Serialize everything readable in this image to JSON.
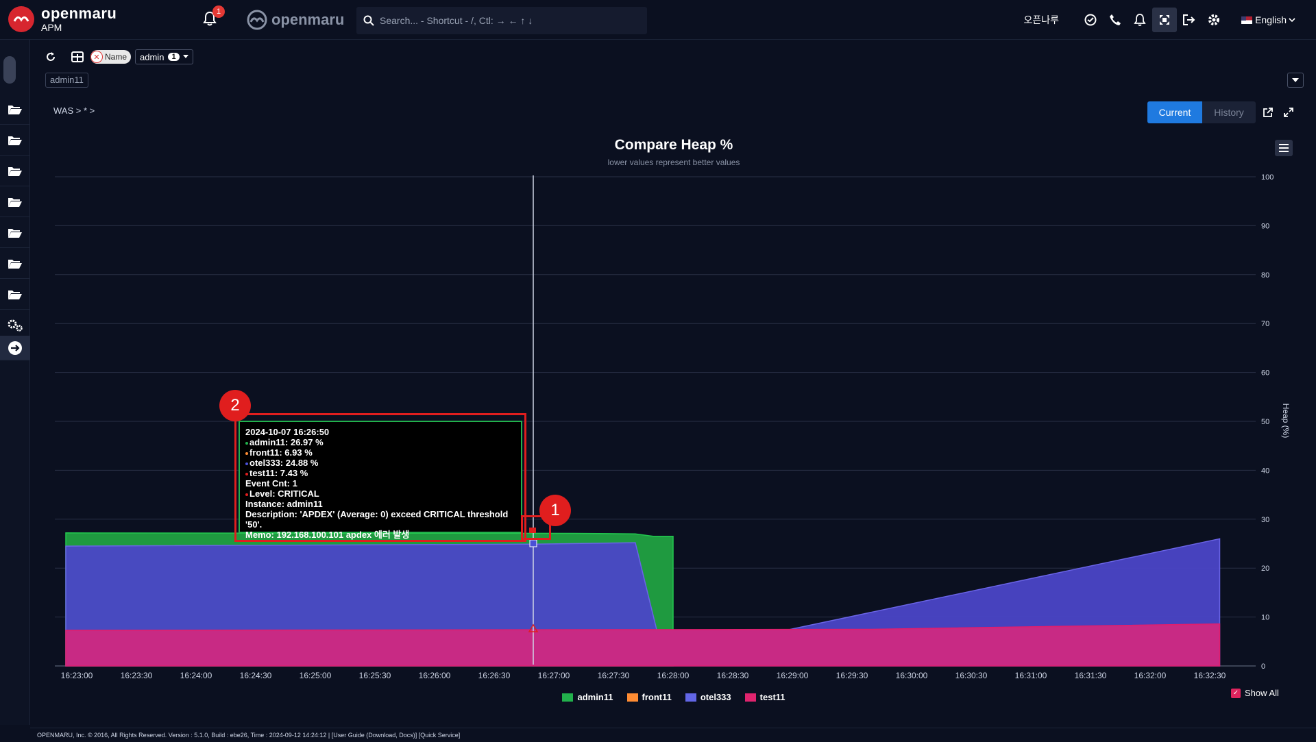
{
  "header": {
    "logo_name": "openmaru",
    "logo_sub": "APM",
    "notification_count": "1",
    "brand2": "openmaru",
    "search_placeholder": "Search... - Shortcut - /, Ctl: → ← ↑ ↓",
    "org_name": "오픈나루",
    "language": "English"
  },
  "toolbar": {
    "filter_chip": "Name",
    "selected_user": "admin",
    "selected_count": "1",
    "tag": "admin11"
  },
  "breadcrumb": "WAS > * >",
  "view_toggle": {
    "current": "Current",
    "history": "History"
  },
  "chart_data": {
    "type": "area",
    "title": "Compare Heap %",
    "subtitle": "lower values represent better values",
    "ylabel": "Heap (%)",
    "ylim": [
      0,
      100
    ],
    "yticks": [
      "0",
      "10",
      "20",
      "30",
      "40",
      "50",
      "60",
      "70",
      "80",
      "90",
      "100"
    ],
    "xticks": [
      "16:23:00",
      "16:23:30",
      "16:24:00",
      "16:24:30",
      "16:25:00",
      "16:25:30",
      "16:26:00",
      "16:26:30",
      "16:27:00",
      "16:27:30",
      "16:28:00",
      "16:28:30",
      "16:29:00",
      "16:29:30",
      "16:30:00",
      "16:30:30",
      "16:31:00",
      "16:31:30",
      "16:32:00",
      "16:32:30"
    ],
    "x_seconds_note": "",
    "series": [
      {
        "name": "admin11",
        "color": "#22b14c",
        "points": [
          [
            -10,
            27.2
          ],
          [
            250,
            27.1
          ],
          [
            281,
            27.0
          ],
          [
            290,
            26.5
          ],
          [
            300,
            26.5
          ]
        ]
      },
      {
        "name": "front11",
        "color": "#ff8c33",
        "points": [
          [
            -10,
            7.0
          ],
          [
            575,
            7.0
          ]
        ]
      },
      {
        "name": "otel333",
        "color": "#4a50d6",
        "points": [
          [
            -10,
            24.5
          ],
          [
            230,
            24.9
          ],
          [
            281,
            25.2
          ],
          [
            295,
            2.0
          ],
          [
            575,
            26.0
          ]
        ]
      },
      {
        "name": "test11",
        "color": "#d1267a",
        "points": [
          [
            -10,
            7.3
          ],
          [
            230,
            7.4
          ],
          [
            400,
            7.5
          ],
          [
            575,
            8.6
          ]
        ]
      }
    ],
    "legend": [
      "admin11",
      "front11",
      "otel333",
      "test11"
    ],
    "show_all_label": "Show All"
  },
  "tooltip": {
    "timestamp": "2024-10-07 16:26:50",
    "lines": [
      {
        "label": "admin11: 26.97 %",
        "color": "#22b14c"
      },
      {
        "label": "front11: 6.93 %",
        "color": "#ff8c33"
      },
      {
        "label": "otel333: 24.88 %",
        "color": "#4a50d6"
      },
      {
        "label": "test11: 7.43 %",
        "color": "#e01e1e"
      }
    ],
    "event_cnt": "Event Cnt: 1",
    "level": "Level: CRITICAL",
    "level_color": "#e01e1e",
    "instance": "Instance: admin11",
    "description": "Description: 'APDEX' (Average: 0) exceed CRITICAL threshold '50'.",
    "memo": "Memo: 192.168.100.101 apdex 에러 발생"
  },
  "callouts": [
    "1",
    "2"
  ],
  "footer": "OPENMARU, Inc. © 2016, All Rights Reserved. Version : 5.1.0, Build : ebe26, Time : 2024-09-12 14:24:12  |  [User Guide (Download, Docs)] [Quick Service]"
}
